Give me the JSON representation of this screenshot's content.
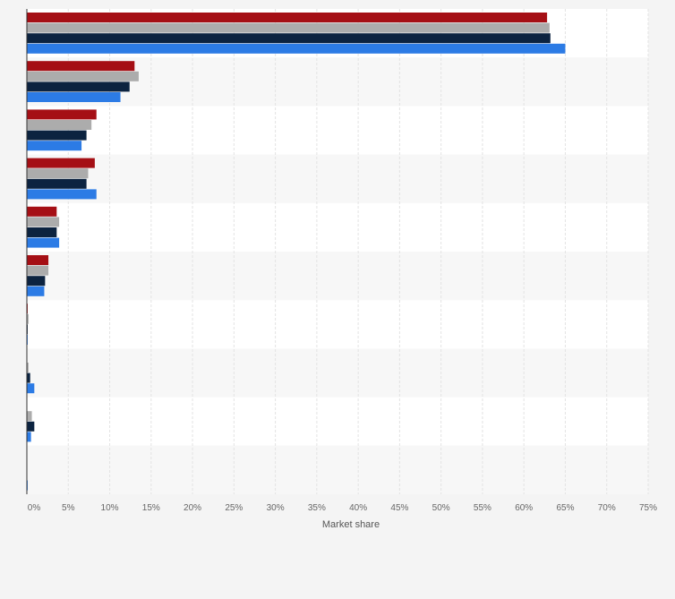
{
  "chart_data": {
    "type": "bar",
    "orientation": "horizontal",
    "title": "",
    "xlabel": "Market share",
    "ylabel": "",
    "xlim": [
      0,
      75
    ],
    "xticks": [
      0,
      5,
      10,
      15,
      20,
      25,
      30,
      35,
      40,
      45,
      50,
      55,
      60,
      65,
      70,
      75
    ],
    "tick_format": "%",
    "grid": true,
    "legend": "none",
    "categories": [
      "",
      "",
      "",
      "",
      "",
      "",
      "",
      "",
      "",
      ""
    ],
    "series": [
      {
        "name": "",
        "color": "#a50f15",
        "values": [
          62.8,
          13.0,
          8.4,
          8.2,
          3.6,
          2.6,
          0.1,
          0.0,
          0.0,
          0.0
        ]
      },
      {
        "name": "",
        "color": "#acacac",
        "values": [
          63.1,
          13.5,
          7.8,
          7.4,
          3.9,
          2.6,
          0.2,
          0.2,
          0.6,
          0.0
        ]
      },
      {
        "name": "",
        "color": "#0c2340",
        "values": [
          63.2,
          12.4,
          7.2,
          7.2,
          3.6,
          2.2,
          0.1,
          0.4,
          0.9,
          0.0
        ]
      },
      {
        "name": "",
        "color": "#2c7be5",
        "values": [
          65.0,
          11.3,
          6.6,
          8.4,
          3.9,
          2.1,
          0.1,
          0.9,
          0.5,
          0.1
        ]
      }
    ]
  }
}
